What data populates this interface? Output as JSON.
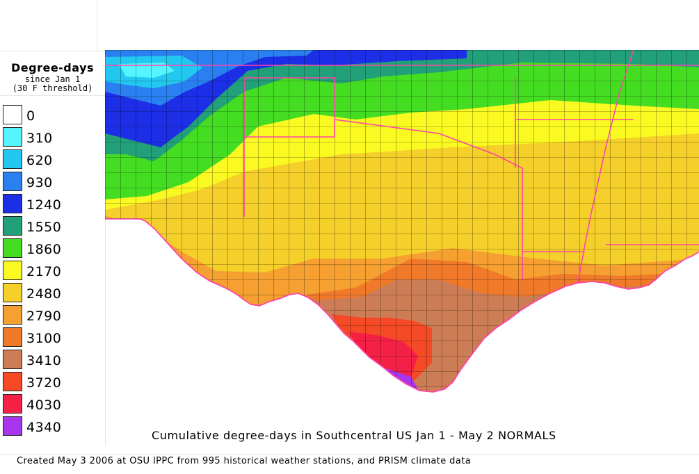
{
  "legend": {
    "title": "Degree-days",
    "subtitle_1": "since Jan 1",
    "subtitle_2": "(30 F threshold)",
    "items": [
      {
        "label": "0",
        "color": "#ffffff"
      },
      {
        "label": "310",
        "color": "#55f5ff"
      },
      {
        "label": "620",
        "color": "#22c8f0"
      },
      {
        "label": "930",
        "color": "#2a80f0"
      },
      {
        "label": "1240",
        "color": "#1c2ee6"
      },
      {
        "label": "1550",
        "color": "#22a07a"
      },
      {
        "label": "1860",
        "color": "#44dd22"
      },
      {
        "label": "2170",
        "color": "#fafa22"
      },
      {
        "label": "2480",
        "color": "#f5cf2a"
      },
      {
        "label": "2790",
        "color": "#f5a030"
      },
      {
        "label": "3100",
        "color": "#f07a2a"
      },
      {
        "label": "3410",
        "color": "#cc7d55"
      },
      {
        "label": "3720",
        "color": "#f54a25"
      },
      {
        "label": "4030",
        "color": "#f52046"
      },
      {
        "label": "4340",
        "color": "#a836ee"
      }
    ]
  },
  "map": {
    "region": "Southcentral US",
    "state_border_color": "#ff44aa",
    "county_border_color": "#000000",
    "coast_color": "#ff44aa"
  },
  "map_title": "Cumulative degree-days in Southcentral US Jan 1 - May 2 NORMALS",
  "credit": "Created May 3 2006 at OSU IPPC from 995 historical weather stations, and PRISM climate data"
}
